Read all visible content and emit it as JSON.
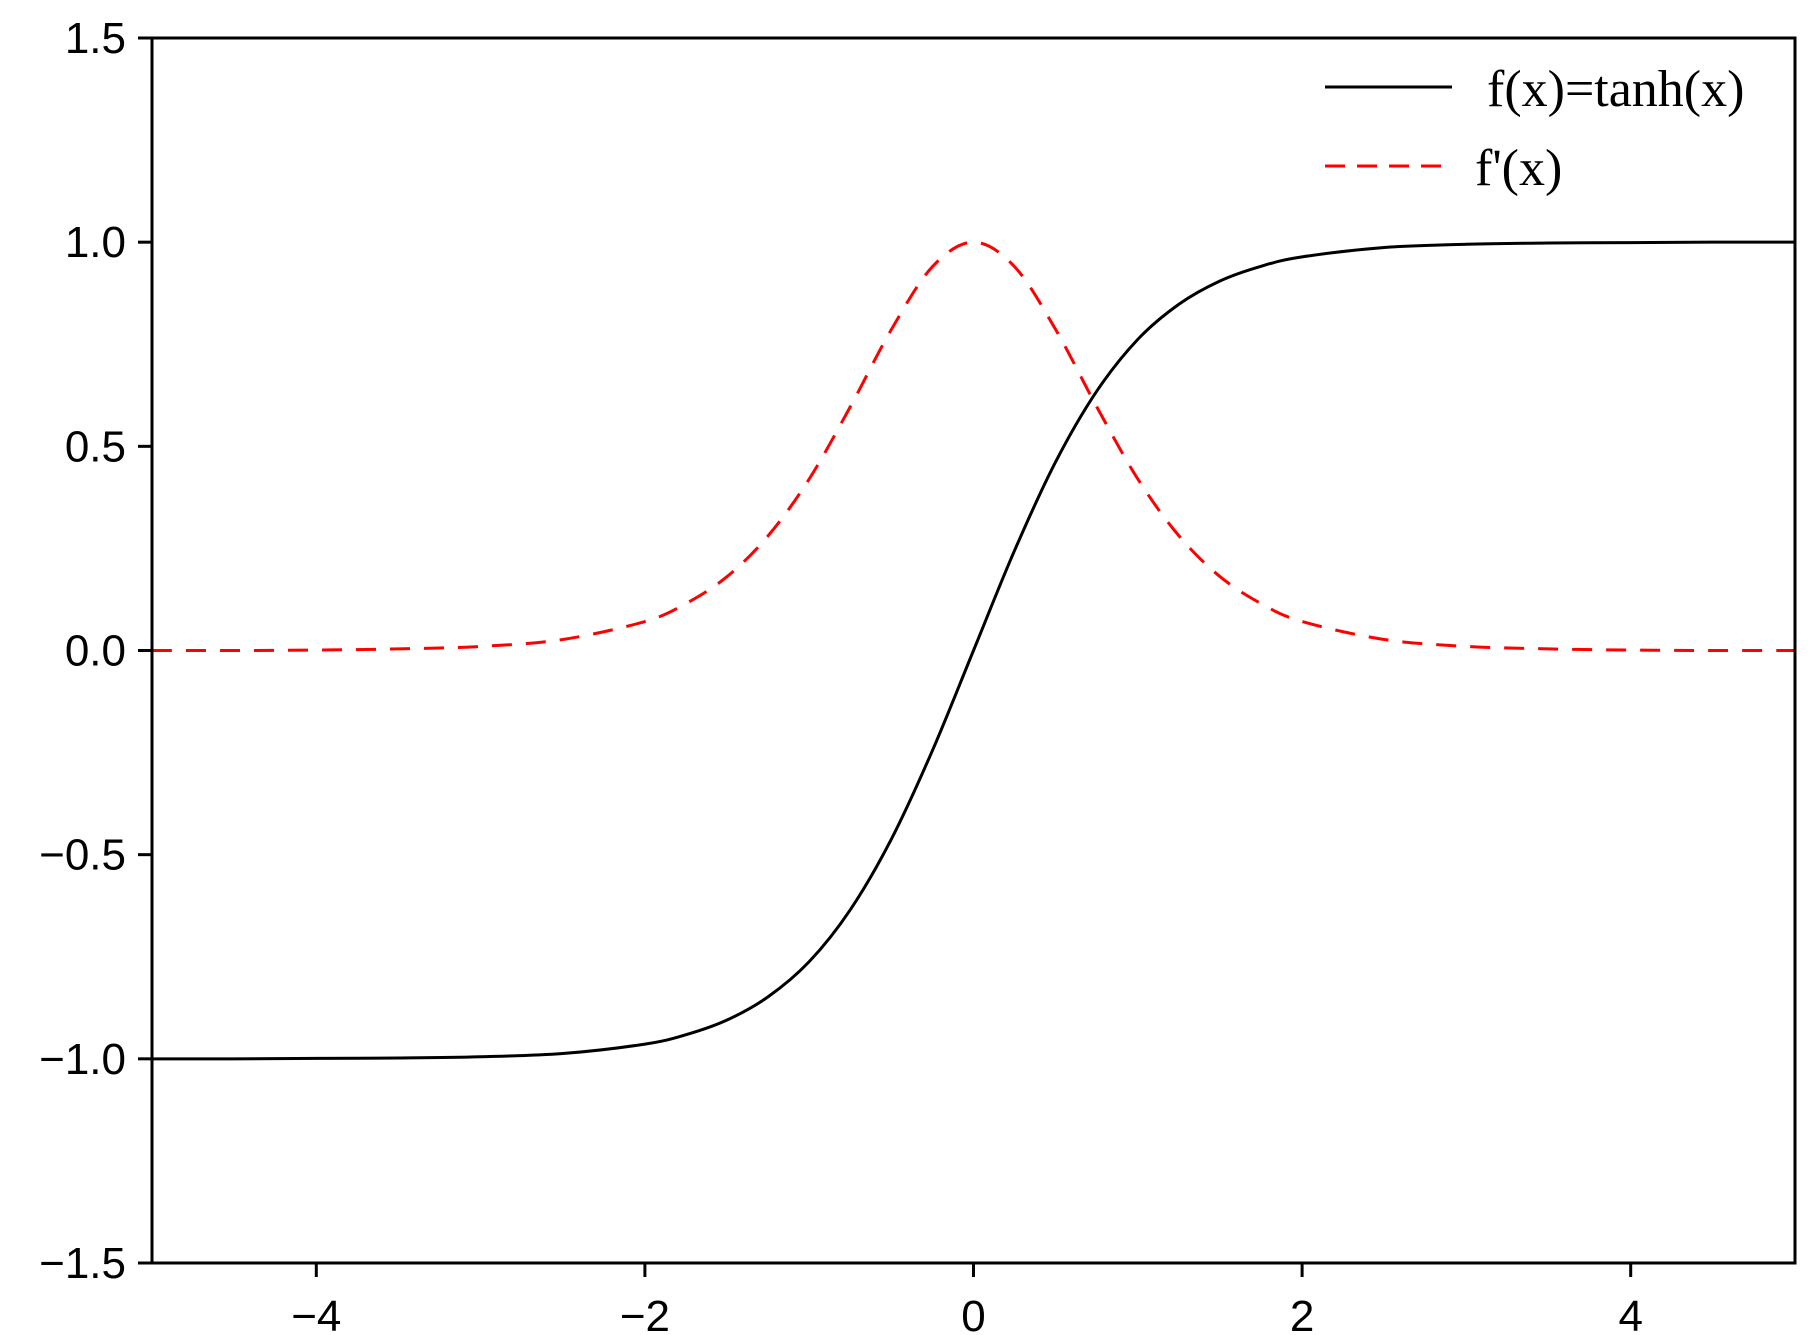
{
  "chart_data": {
    "type": "line",
    "title": "",
    "xlabel": "",
    "ylabel": "",
    "xlim": [
      -5,
      5
    ],
    "ylim": [
      -1.5,
      1.5
    ],
    "xticks": [
      -4,
      -2,
      0,
      2,
      4
    ],
    "xtick_labels": [
      "−4",
      "−2",
      "0",
      "2",
      "4"
    ],
    "yticks": [
      -1.5,
      -1.0,
      -0.5,
      0.0,
      0.5,
      1.0,
      1.5
    ],
    "ytick_labels": [
      "−1.5",
      "−1.0",
      "−0.5",
      "0.0",
      "0.5",
      "1.0",
      "1.5"
    ],
    "grid": false,
    "legend_position": "top-right",
    "x": [
      -5,
      -4.5,
      -4,
      -3.5,
      -3,
      -2.5,
      -2,
      -1.75,
      -1.5,
      -1.25,
      -1,
      -0.75,
      -0.5,
      -0.25,
      0,
      0.25,
      0.5,
      0.75,
      1,
      1.25,
      1.5,
      1.75,
      2,
      2.5,
      3,
      3.5,
      4,
      4.5,
      5
    ],
    "series": [
      {
        "name": "f(x)=tanh(x)",
        "color": "#000000",
        "style": "solid",
        "values": [
          -1.0,
          -1.0,
          -0.999,
          -0.998,
          -0.995,
          -0.987,
          -0.964,
          -0.941,
          -0.905,
          -0.848,
          -0.762,
          -0.635,
          -0.462,
          -0.245,
          0.0,
          0.245,
          0.462,
          0.635,
          0.762,
          0.848,
          0.905,
          0.941,
          0.964,
          0.987,
          0.995,
          0.998,
          0.999,
          1.0,
          1.0
        ]
      },
      {
        "name": "f'(x)",
        "color": "#ff0000",
        "style": "dashed",
        "values": [
          0.0,
          0.0,
          0.001,
          0.004,
          0.01,
          0.027,
          0.071,
          0.115,
          0.181,
          0.281,
          0.42,
          0.597,
          0.786,
          0.94,
          1.0,
          0.94,
          0.786,
          0.597,
          0.42,
          0.281,
          0.181,
          0.115,
          0.071,
          0.027,
          0.01,
          0.004,
          0.001,
          0.0,
          0.0
        ]
      }
    ]
  }
}
